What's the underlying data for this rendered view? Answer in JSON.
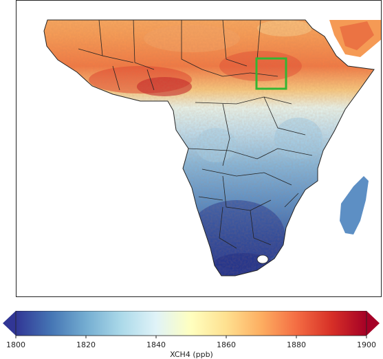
{
  "map": {
    "region": "Africa",
    "variable": "XCH4",
    "highlight_box_color": "#33b533",
    "border_color": "#222222"
  },
  "colorbar": {
    "label": "XCH4 (ppb)",
    "min": 1800,
    "max": 1900,
    "ticks": [
      "1800",
      "1820",
      "1840",
      "1860",
      "1880",
      "1900"
    ],
    "colormap": "RdYlBu_r",
    "colors": [
      "#313695",
      "#4575b4",
      "#74add1",
      "#abd9e9",
      "#e0f3f8",
      "#ffffbf",
      "#fee090",
      "#fdae61",
      "#f46d43",
      "#d73027",
      "#a50026"
    ],
    "extend": "both"
  }
}
